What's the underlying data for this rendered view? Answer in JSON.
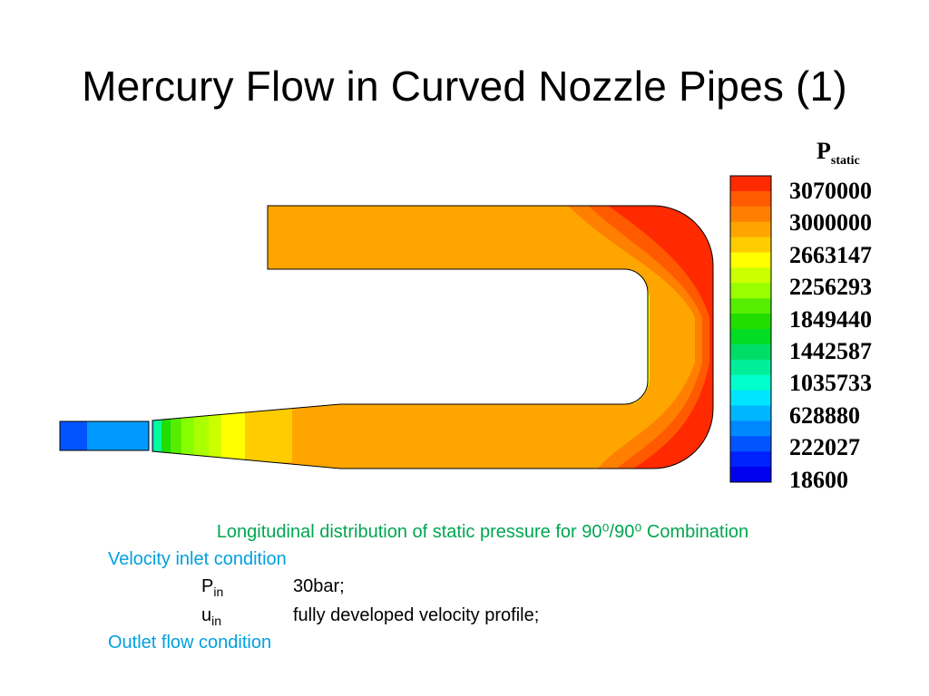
{
  "slide": {
    "title": "Mercury Flow in Curved Nozzle Pipes (1)"
  },
  "legend": {
    "title_main": "P",
    "title_sub": "static",
    "labels": [
      "3070000",
      "3000000",
      "2663147",
      "2256293",
      "1849440",
      "1442587",
      "1035733",
      "628880",
      "222027",
      "18600"
    ],
    "colors": [
      "#ff2a00",
      "#ff5a00",
      "#ff7f00",
      "#ffa500",
      "#ffcc00",
      "#ffff00",
      "#ccff00",
      "#99ff00",
      "#55ee00",
      "#22dd00",
      "#00dd22",
      "#00dd66",
      "#00ee99",
      "#00ffcc",
      "#00e5ff",
      "#00b7ff",
      "#0088ff",
      "#0055ff",
      "#0022ff",
      "#0000ee"
    ]
  },
  "caption": {
    "text": "Longitudinal distribution of static pressure for 90⁰/90⁰ Combination",
    "color": "#00a651"
  },
  "inlet": {
    "heading": "Velocity inlet condition",
    "color": "#00a0e0",
    "rows": [
      {
        "sym": "P",
        "sub": "in",
        "value": "30bar;"
      },
      {
        "sym": "u",
        "sub": "in",
        "value": "fully developed velocity profile;"
      }
    ]
  },
  "outlet": {
    "heading": "Outlet flow condition",
    "color": "#00a0e0"
  }
}
